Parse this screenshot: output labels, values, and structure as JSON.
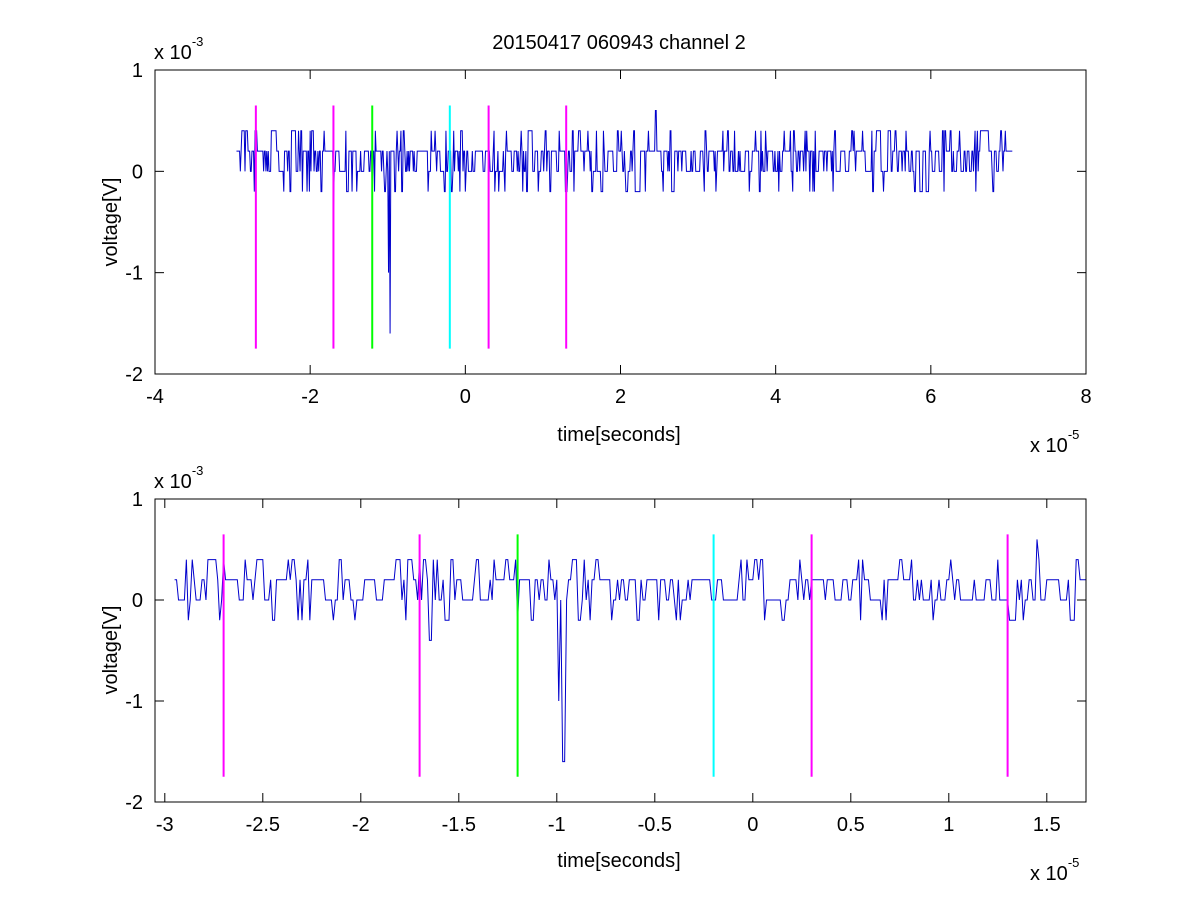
{
  "figure": {
    "background": "#ffffff",
    "signal_color": "#0000cc",
    "axis_color": "#000000"
  },
  "chart_data": [
    {
      "type": "line",
      "title": "20150417 060943 channel 2",
      "xlabel": "time[seconds]",
      "ylabel": "voltage[V]",
      "x_exponent_label": {
        "base": "x 10",
        "power": "-5"
      },
      "y_exponent_label": {
        "base": "x 10",
        "power": "-3"
      },
      "xlim": [
        -4,
        8
      ],
      "ylim": [
        -2,
        1
      ],
      "xticks": [
        -4,
        -2,
        0,
        2,
        4,
        6,
        8
      ],
      "xtick_labels": [
        "-4",
        "-2",
        "0",
        "2",
        "4",
        "6",
        "8"
      ],
      "yticks": [
        -2,
        -1,
        0,
        1
      ],
      "ytick_labels": [
        "-2",
        "-1",
        "0",
        "1"
      ],
      "grid": false,
      "legend": "none",
      "series": [
        {
          "color": "#0000cc",
          "x_range": [
            -2.95,
            7.05
          ],
          "levels": [
            -0.2,
            0,
            0.2,
            0.4
          ],
          "spikes": [
            {
              "x": -2.7,
              "y": 0.4
            },
            {
              "x": -1.7,
              "y": -0.4
            },
            {
              "x": -1.2,
              "y": -0.2
            },
            {
              "x": -0.99,
              "y": -1.0
            },
            {
              "x": -0.97,
              "y": -1.6
            },
            {
              "x": 2.45,
              "y": 0.6
            }
          ]
        }
      ],
      "markers": [
        {
          "x": -2.7,
          "color": "#ff00ff",
          "y_range": [
            -1.75,
            0.65
          ]
        },
        {
          "x": -1.7,
          "color": "#ff00ff",
          "y_range": [
            -1.75,
            0.65
          ]
        },
        {
          "x": -1.2,
          "color": "#00ff00",
          "y_range": [
            -1.75,
            0.65
          ]
        },
        {
          "x": -0.2,
          "color": "#00ffff",
          "y_range": [
            -1.75,
            0.65
          ]
        },
        {
          "x": 0.3,
          "color": "#ff00ff",
          "y_range": [
            -1.75,
            0.65
          ]
        },
        {
          "x": 1.3,
          "color": "#ff00ff",
          "y_range": [
            -1.75,
            0.65
          ]
        }
      ]
    },
    {
      "type": "line",
      "xlabel": "time[seconds]",
      "ylabel": "voltage[V]",
      "x_exponent_label": {
        "base": "x 10",
        "power": "-5"
      },
      "y_exponent_label": {
        "base": "x 10",
        "power": "-3"
      },
      "xlim": [
        -3.05,
        1.7
      ],
      "ylim": [
        -2,
        1
      ],
      "xticks": [
        -3,
        -2.5,
        -2,
        -1.5,
        -1,
        -0.5,
        0,
        0.5,
        1,
        1.5
      ],
      "xtick_labels": [
        "-3",
        "-2.5",
        "-2",
        "-1.5",
        "-1",
        "-0.5",
        "0",
        "0.5",
        "1",
        "1.5"
      ],
      "yticks": [
        -2,
        -1,
        0,
        1
      ],
      "ytick_labels": [
        "-2",
        "-1",
        "0",
        "1"
      ],
      "grid": false,
      "legend": "none",
      "series": [
        {
          "color": "#0000cc",
          "x_range": [
            -2.95,
            1.7
          ],
          "levels": [
            -0.2,
            0,
            0.2,
            0.4
          ],
          "spikes": [
            {
              "x": -2.75,
              "y": 0.4
            },
            {
              "x": -1.65,
              "y": -0.4
            },
            {
              "x": -1.2,
              "y": -0.2
            },
            {
              "x": -0.99,
              "y": -1.0
            },
            {
              "x": -0.97,
              "y": -1.6
            },
            {
              "x": 1.45,
              "y": 0.6
            }
          ]
        }
      ],
      "markers": [
        {
          "x": -2.7,
          "color": "#ff00ff",
          "y_range": [
            -1.75,
            0.65
          ]
        },
        {
          "x": -1.7,
          "color": "#ff00ff",
          "y_range": [
            -1.75,
            0.65
          ]
        },
        {
          "x": -1.2,
          "color": "#00ff00",
          "y_range": [
            -1.75,
            0.65
          ]
        },
        {
          "x": -0.2,
          "color": "#00ffff",
          "y_range": [
            -1.75,
            0.65
          ]
        },
        {
          "x": 0.3,
          "color": "#ff00ff",
          "y_range": [
            -1.75,
            0.65
          ]
        },
        {
          "x": 1.3,
          "color": "#ff00ff",
          "y_range": [
            -1.75,
            0.65
          ]
        }
      ]
    }
  ]
}
